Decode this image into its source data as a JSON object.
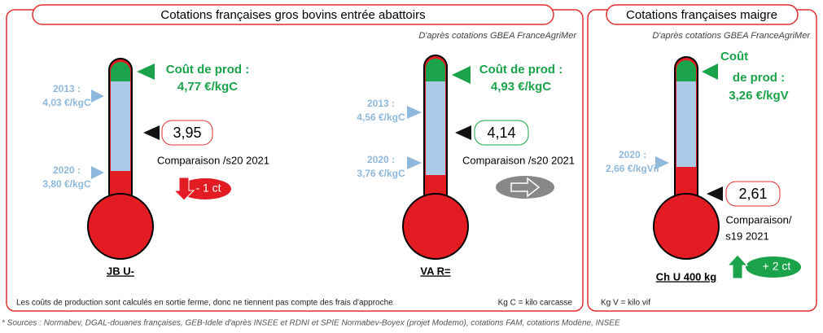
{
  "panels": [
    {
      "title": "Cotations françaises gros bovins entrée abattoirs",
      "source": "D'après cotations GBEA FranceAgriMer",
      "thermometers": [
        {
          "cost_label": "Coût de prod :",
          "cost_value": "4,77 €/kgC",
          "ref_2013_year": "2013 :",
          "ref_2013_value": "4,03 €/kgC",
          "ref_2020_year": "2020 :",
          "ref_2020_value": "3,80 €/kgC",
          "price": "3,95",
          "comparison": "Comparaison /s20 2021",
          "change": "- 1 ct",
          "name": "JB U-"
        },
        {
          "cost_label": "Coût de prod :",
          "cost_value": "4,93 €/kgC",
          "ref_2013_year": "2013 :",
          "ref_2013_value": "4,56 €/kgC",
          "ref_2020_year": "2020 :",
          "ref_2020_value": "3,76 €/kgC",
          "price": "4,14",
          "comparison": "Comparaison /s20 2021",
          "name": "VA R="
        }
      ],
      "footnote_left": "Les coûts de production sont calculés en sortie ferme, donc ne tiennent pas compte des frais d'approche",
      "footnote_right": "Kg C = kilo carcasse"
    },
    {
      "title": "Cotations françaises maigre",
      "source": "D'après cotations GBEA FranceAgriMer",
      "thermometers": [
        {
          "cost_label_line1": "Coût",
          "cost_label_line2": "de prod :",
          "cost_value": "3,26 €/kgV",
          "ref_2020_year": "2020 :",
          "ref_2020_value": "2,66 €/kgVif",
          "price": "2,61",
          "comparison_line1": "Comparaison/",
          "comparison_line2": "s19 2021",
          "change": "+ 2 ct",
          "name": "Ch U 400 kg"
        }
      ],
      "footnote_left": "Kg V = kilo vif"
    }
  ],
  "sources": "* Sources : Normabev, DGAL-douanes françaises, GEB-Idele d'après INSEE et RDNI et SPIE Normabev-Boyex (projet Modemo), cotations FAM, cotations Modène, INSEE"
}
